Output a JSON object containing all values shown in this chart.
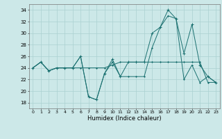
{
  "xlabel": "Humidex (Indice chaleur)",
  "x": [
    0,
    1,
    2,
    3,
    4,
    5,
    6,
    7,
    8,
    9,
    10,
    11,
    12,
    13,
    14,
    15,
    16,
    17,
    18,
    19,
    20,
    21,
    22,
    23
  ],
  "line1": [
    24,
    25,
    23.5,
    24,
    24,
    24,
    24,
    24,
    24,
    24,
    24.5,
    25,
    25,
    25,
    25,
    25,
    25,
    25,
    25,
    25,
    25,
    25,
    21.5,
    21.5
  ],
  "line2": [
    24,
    25,
    23.5,
    24,
    24,
    24,
    26,
    19,
    18.5,
    23,
    25,
    22.5,
    22.5,
    22.5,
    22.5,
    27.5,
    31,
    33,
    32.5,
    22,
    24.5,
    21.5,
    22.5,
    21.5
  ],
  "line3": [
    24,
    25,
    23.5,
    24,
    24,
    24,
    26,
    19,
    18.5,
    23,
    25.5,
    22.5,
    25,
    25,
    25,
    30,
    31,
    34,
    32.5,
    26.5,
    31.5,
    24.5,
    22.5,
    21.5
  ],
  "bg_color": "#cce8e8",
  "grid_color": "#aad0d0",
  "line_color": "#1a7070",
  "ylim": [
    17,
    35
  ],
  "yticks": [
    18,
    20,
    22,
    24,
    26,
    28,
    30,
    32,
    34
  ],
  "xlim": [
    -0.5,
    23.5
  ],
  "xticks": [
    0,
    1,
    2,
    3,
    4,
    5,
    6,
    7,
    8,
    9,
    10,
    11,
    12,
    13,
    14,
    15,
    16,
    17,
    18,
    19,
    20,
    21,
    22,
    23
  ]
}
